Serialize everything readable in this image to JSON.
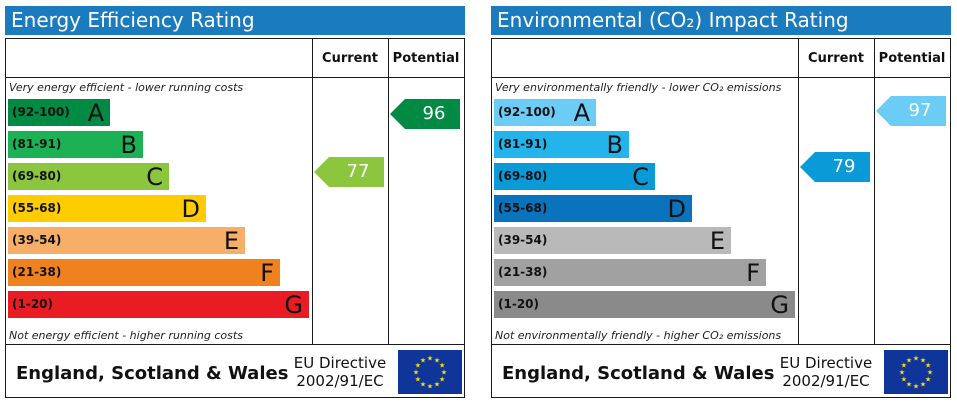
{
  "chart_data": [
    {
      "type": "bar",
      "title": "Energy Efficiency Rating",
      "columns": {
        "current": "Current",
        "potential": "Potential"
      },
      "top_note": "Very energy efficient - lower running costs",
      "bottom_note": "Not energy efficient - higher running costs",
      "bands": [
        {
          "range": "(92-100)",
          "letter": "A",
          "color": "#008a43"
        },
        {
          "range": "(81-91)",
          "letter": "B",
          "color": "#1db155"
        },
        {
          "range": "(69-80)",
          "letter": "C",
          "color": "#8cc63f"
        },
        {
          "range": "(55-68)",
          "letter": "D",
          "color": "#ffcc00"
        },
        {
          "range": "(39-54)",
          "letter": "E",
          "color": "#f7ae68"
        },
        {
          "range": "(21-38)",
          "letter": "F",
          "color": "#f0811f"
        },
        {
          "range": "(1-20)",
          "letter": "G",
          "color": "#ea1c23"
        }
      ],
      "current": {
        "value": 77,
        "color": "#8cc63f"
      },
      "potential": {
        "value": 96,
        "color": "#008a43"
      },
      "footer": {
        "region": "England, Scotland & Wales",
        "directive_line1": "EU Directive",
        "directive_line2": "2002/91/EC"
      }
    },
    {
      "type": "bar",
      "title": "Environmental (CO₂) Impact Rating",
      "columns": {
        "current": "Current",
        "potential": "Potential"
      },
      "top_note": "Very environmentally friendly - lower CO₂ emissions",
      "bottom_note": "Not environmentally friendly - higher CO₂ emissions",
      "bands": [
        {
          "range": "(92-100)",
          "letter": "A",
          "color": "#6bcdf5"
        },
        {
          "range": "(81-91)",
          "letter": "B",
          "color": "#22b4eb"
        },
        {
          "range": "(69-80)",
          "letter": "C",
          "color": "#0a9ad8"
        },
        {
          "range": "(55-68)",
          "letter": "D",
          "color": "#0a73bd"
        },
        {
          "range": "(39-54)",
          "letter": "E",
          "color": "#b9b9b9"
        },
        {
          "range": "(21-38)",
          "letter": "F",
          "color": "#a1a1a1"
        },
        {
          "range": "(1-20)",
          "letter": "G",
          "color": "#8a8a8a"
        }
      ],
      "current": {
        "value": 79,
        "color": "#0a9ad8"
      },
      "potential": {
        "value": 97,
        "color": "#6bcdf5"
      },
      "footer": {
        "region": "England, Scotland & Wales",
        "directive_line1": "EU Directive",
        "directive_line2": "2002/91/EC"
      }
    }
  ]
}
